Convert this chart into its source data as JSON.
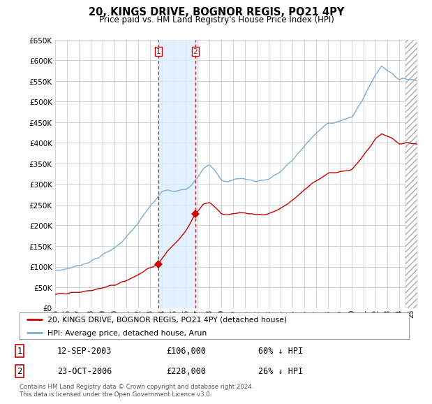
{
  "title": "20, KINGS DRIVE, BOGNOR REGIS, PO21 4PY",
  "subtitle": "Price paid vs. HM Land Registry's House Price Index (HPI)",
  "legend_line1": "20, KINGS DRIVE, BOGNOR REGIS, PO21 4PY (detached house)",
  "legend_line2": "HPI: Average price, detached house, Arun",
  "transaction1_date": "12-SEP-2003",
  "transaction1_price": 106000,
  "transaction1_label": "60% ↓ HPI",
  "transaction1_year": 2003.71,
  "transaction2_date": "23-OCT-2006",
  "transaction2_price": 228000,
  "transaction2_label": "26% ↓ HPI",
  "transaction2_year": 2006.81,
  "footer": "Contains HM Land Registry data © Crown copyright and database right 2024.\nThis data is licensed under the Open Government Licence v3.0.",
  "hpi_color": "#7aadd4",
  "price_color": "#cc0000",
  "highlight_color": "#ddeeff",
  "vline_color": "#cc0000",
  "ylim": [
    0,
    650000
  ],
  "yticks": [
    0,
    50000,
    100000,
    150000,
    200000,
    250000,
    300000,
    350000,
    400000,
    450000,
    500000,
    550000,
    600000,
    650000
  ],
  "xmin": 1995.0,
  "xmax": 2025.5,
  "background_color": "#ffffff",
  "grid_color": "#cccccc",
  "future_start": 2024.5
}
